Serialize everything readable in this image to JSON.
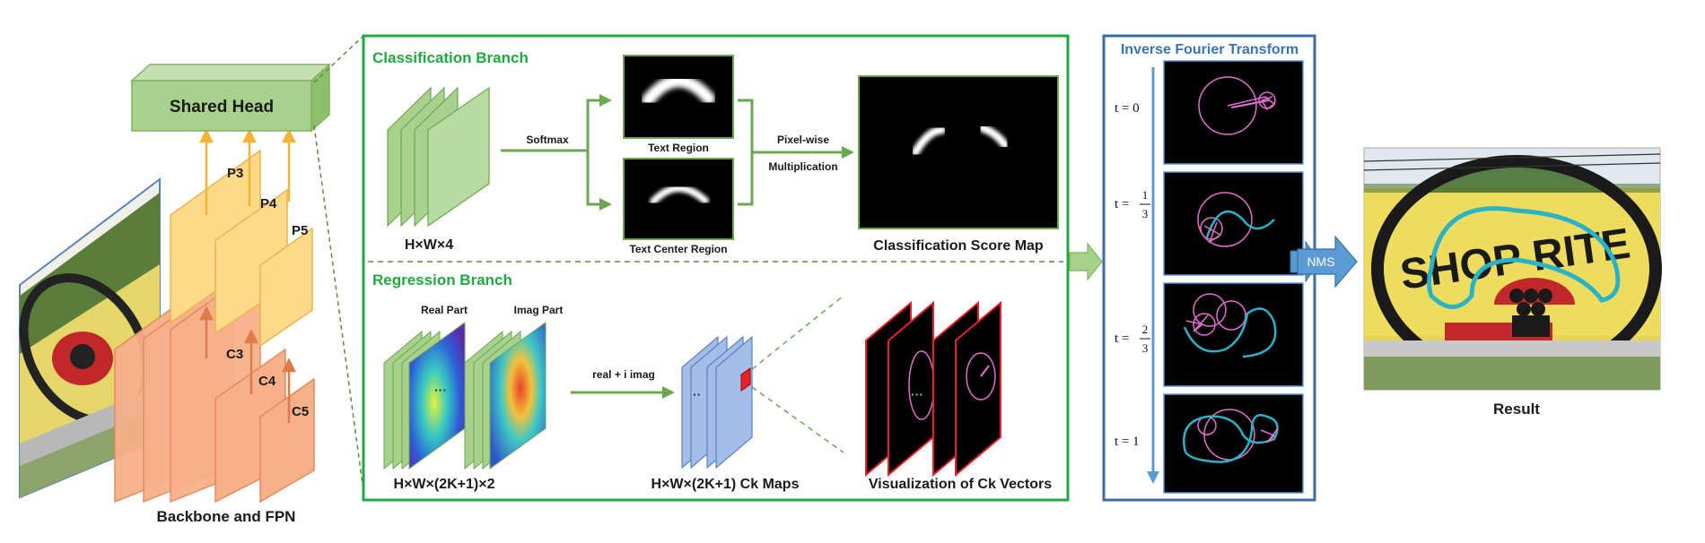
{
  "backbone": {
    "caption": "Backbone and FPN",
    "levels": [
      "C3",
      "C4",
      "C5"
    ],
    "fpn_levels": [
      "P3",
      "P4",
      "P5"
    ],
    "head_label": "Shared Head"
  },
  "classification": {
    "title": "Classification Branch",
    "tensor_label": "H×W×4",
    "softmax_label": "Softmax",
    "text_region_label": "Text Region",
    "text_center_label": "Text Center Region",
    "op_label_1": "Pixel-wise",
    "op_label_2": "Multiplication",
    "score_map_label": "Classification Score Map"
  },
  "regression": {
    "title": "Regression Branch",
    "real_label": "Real Part",
    "imag_label": "Imag Part",
    "tensor_label": "H×W×(2K+1)×2",
    "op_label": "real + i imag",
    "ck_maps_label": "H×W×(2K+1) Ck Maps",
    "ck_vectors_label": "Visualization of Ck Vectors"
  },
  "ift": {
    "title": "Inverse Fourier Transform",
    "t_labels": [
      {
        "prefix": "t =",
        "whole": "0"
      },
      {
        "prefix": "t =",
        "num": "1",
        "den": "3"
      },
      {
        "prefix": "t =",
        "num": "2",
        "den": "3"
      },
      {
        "prefix": "t =",
        "whole": "1"
      }
    ]
  },
  "nms_label": "NMS",
  "result": {
    "caption": "Result",
    "sign_text": "SHOP RITE"
  },
  "colors": {
    "green_border": "#1faa3d",
    "blue_border": "#3a6ea5",
    "orange_fill": "#f7b08a",
    "yellow_fill": "#fdd98a",
    "head_fill": "#a9d18e",
    "curve_cyan": "#2ab3c6",
    "curve_pink": "#e36fcf"
  }
}
